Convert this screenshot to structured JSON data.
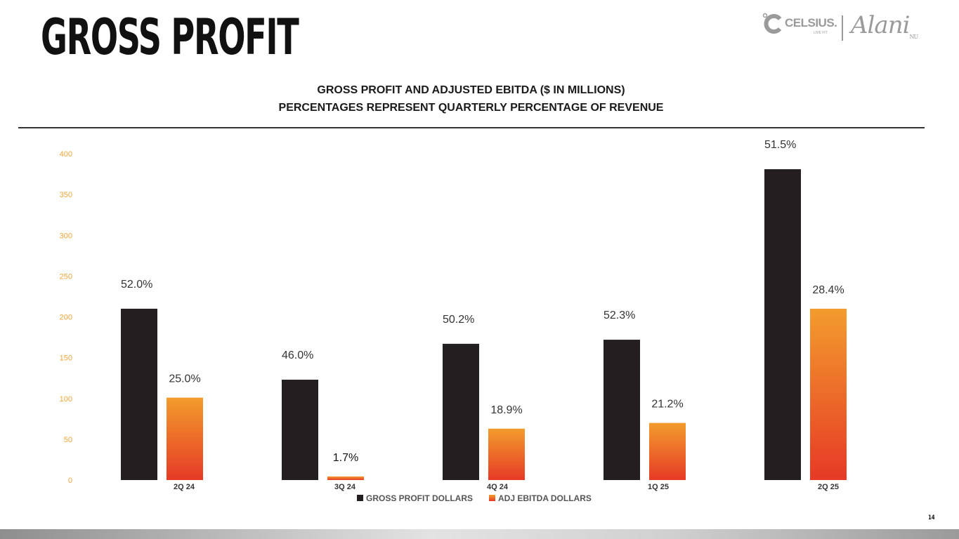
{
  "slide": {
    "title": "GROSS PROFIT",
    "subtitle_line1": "GROSS PROFIT AND ADJUSTED EBITDA ($ IN MILLIONS)",
    "subtitle_line2": "PERCENTAGES REPRESENT QUARTERLY PERCENTAGE OF REVENUE",
    "page_number": "14"
  },
  "logos": {
    "celsius_name": "CELSIUS.",
    "celsius_tagline": "LIVE FIT",
    "alani_name": "Alani",
    "alani_suffix": "NU"
  },
  "colors": {
    "gross_profit": "#231f20",
    "ebitda_top": "#f39c2d",
    "ebitda_bottom": "#e63a26",
    "tick_label": "#f0a63a"
  },
  "chart_data": {
    "type": "bar",
    "title": "GROSS PROFIT AND ADJUSTED EBITDA ($ IN MILLIONS)",
    "xlabel": "",
    "ylabel": "",
    "ylim": [
      0,
      400
    ],
    "yticks": [
      0,
      50,
      100,
      150,
      200,
      250,
      300,
      350,
      400
    ],
    "grid": false,
    "legend_position": "bottom-center",
    "categories": [
      "2Q 24",
      "3Q 24",
      "4Q 24",
      "1Q 25",
      "2Q 25"
    ],
    "series": [
      {
        "name": "GROSS PROFIT DOLLARS",
        "values": [
          210,
          123,
          167,
          172,
          381
        ],
        "labels": [
          "52.0%",
          "46.0%",
          "50.2%",
          "52.3%",
          "51.5%"
        ]
      },
      {
        "name": "ADJ EBITDA DOLLARS",
        "values": [
          101,
          4.4,
          63,
          70,
          210
        ],
        "labels": [
          "25.0%",
          "1.7%",
          "18.9%",
          "21.2%",
          "28.4%"
        ]
      }
    ]
  }
}
